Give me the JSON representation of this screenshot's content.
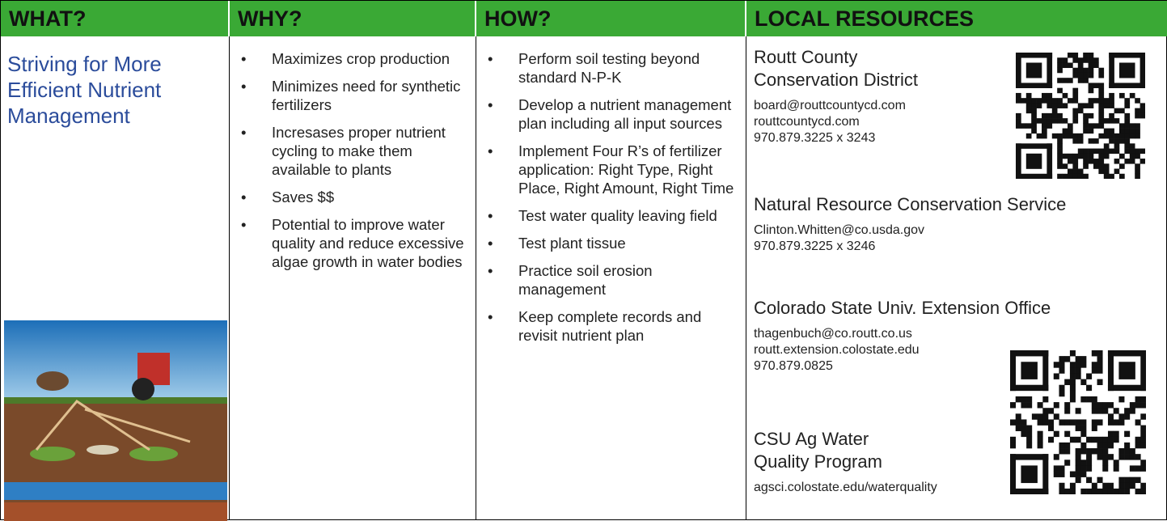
{
  "header": [
    "WHAT?",
    "WHY?",
    "HOW?",
    "LOCAL RESOURCES"
  ],
  "what": {
    "title": "Striving for More Efficient Nutrient Management"
  },
  "why": {
    "items": [
      "Maximizes crop production",
      "Minimizes need for synthetic fertilizers",
      "Incresases proper nutrient cycling to make them available to plants",
      "Saves $$",
      "Potential to improve water quality and reduce excessive algae growth in water bodies"
    ]
  },
  "how": {
    "items": [
      "Perform soil testing beyond standard N-P-K",
      "Develop a nutrient management plan including all input sources",
      "Implement Four R’s of fertilizer application: Right Type, Right Place, Right Amount, Right Time",
      "Test water quality leaving field",
      "Test plant tissue",
      "Practice soil erosion management",
      "Keep complete records and revisit nutrient plan"
    ]
  },
  "resources": [
    {
      "name": "Routt County Conservation District",
      "lines": [
        "board@routtcountycd.com",
        "routtcountycd.com",
        "970.879.3225 x 3243"
      ]
    },
    {
      "name": "Natural Resource Conservation Service",
      "lines": [
        "Clinton.Whitten@co.usda.gov",
        "970.879.3225 x 3246"
      ]
    },
    {
      "name": "Colorado State Univ. Extension Office",
      "lines": [
        "thagenbuch@co.routt.co.us",
        "routt.extension.colostate.edu",
        "970.879.0825"
      ]
    },
    {
      "name": "CSU Ag Water Quality Program",
      "lines": [
        "agsci.colostate.edu/waterquality"
      ]
    }
  ]
}
